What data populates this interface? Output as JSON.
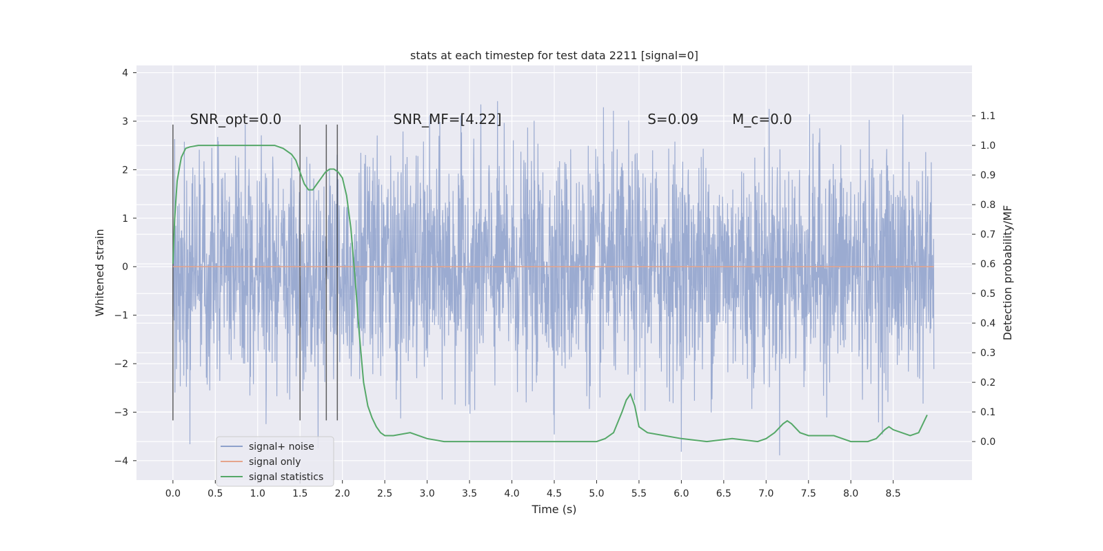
{
  "chart_data": {
    "type": "line",
    "title": "stats at each timestep for test data 2211 [signal=0]",
    "xlabel": "Time (s)",
    "ylabel": "Whitened strain",
    "y2label": "Detection probability/MF",
    "xlim": [
      -0.43,
      9.43
    ],
    "ylim": [
      -4.4,
      4.15
    ],
    "y2lim": [
      -0.13,
      1.27
    ],
    "xticks": [
      "0.0",
      "0.5",
      "1.0",
      "1.5",
      "2.0",
      "2.5",
      "3.0",
      "3.5",
      "4.0",
      "4.5",
      "5.0",
      "5.5",
      "6.0",
      "6.5",
      "7.0",
      "7.5",
      "8.0",
      "8.5"
    ],
    "yticks": [
      "4",
      "3",
      "2",
      "1",
      "0",
      "−1",
      "−2",
      "−3",
      "−4"
    ],
    "y2ticks": [
      "1.1",
      "1.0",
      "0.9",
      "0.8",
      "0.7",
      "0.6",
      "0.5",
      "0.4",
      "0.3",
      "0.2",
      "0.1",
      "0.0"
    ],
    "grid": true,
    "legend_position": "lower-left",
    "annotations": [
      {
        "text": "SNR_opt=0.0",
        "x": 0.2
      },
      {
        "text": "SNR_MF=[4.22]",
        "x": 2.6
      },
      {
        "text": "S=0.09",
        "x": 5.6
      },
      {
        "text": "M_c=0.0",
        "x": 6.6
      }
    ],
    "vlines": [
      0.0,
      1.5,
      1.81,
      1.94
    ],
    "series": [
      {
        "name": "signal+ noise",
        "color": "#8da0cb",
        "axis": "left",
        "description_values": {
          "t_start": 0.0,
          "t_end": 8.98,
          "envelope_p95": 2.5,
          "max": 3.8,
          "min": -4.0
        }
      },
      {
        "name": "signal only",
        "color": "#e5a48b",
        "axis": "left",
        "x": [
          0.0,
          8.98
        ],
        "values": [
          0.0,
          0.0
        ]
      },
      {
        "name": "signal statistics",
        "color": "#55a868",
        "axis": "right",
        "x": [
          0.0,
          0.02,
          0.05,
          0.08,
          0.1,
          0.15,
          0.2,
          0.3,
          0.5,
          0.8,
          1.0,
          1.2,
          1.3,
          1.4,
          1.45,
          1.5,
          1.55,
          1.6,
          1.65,
          1.7,
          1.75,
          1.8,
          1.85,
          1.9,
          1.95,
          2.0,
          2.05,
          2.1,
          2.15,
          2.2,
          2.25,
          2.3,
          2.35,
          2.4,
          2.45,
          2.5,
          2.6,
          2.8,
          3.0,
          3.2,
          3.5,
          4.0,
          4.5,
          4.8,
          5.0,
          5.1,
          5.2,
          5.3,
          5.35,
          5.4,
          5.45,
          5.5,
          5.6,
          5.8,
          6.0,
          6.3,
          6.6,
          6.9,
          7.0,
          7.1,
          7.2,
          7.25,
          7.3,
          7.4,
          7.5,
          7.6,
          7.8,
          8.0,
          8.2,
          8.3,
          8.4,
          8.45,
          8.5,
          8.6,
          8.7,
          8.8,
          8.9
        ],
        "values": [
          0.6,
          0.75,
          0.88,
          0.93,
          0.96,
          0.99,
          0.995,
          1.0,
          1.0,
          1.0,
          1.0,
          1.0,
          0.99,
          0.97,
          0.95,
          0.91,
          0.87,
          0.85,
          0.85,
          0.87,
          0.89,
          0.91,
          0.92,
          0.92,
          0.91,
          0.89,
          0.83,
          0.72,
          0.55,
          0.36,
          0.2,
          0.12,
          0.08,
          0.05,
          0.03,
          0.02,
          0.02,
          0.03,
          0.01,
          0.0,
          0.0,
          0.0,
          0.0,
          0.0,
          0.0,
          0.01,
          0.03,
          0.1,
          0.14,
          0.16,
          0.12,
          0.05,
          0.03,
          0.02,
          0.01,
          0.0,
          0.01,
          0.0,
          0.01,
          0.03,
          0.06,
          0.07,
          0.06,
          0.03,
          0.02,
          0.02,
          0.02,
          0.0,
          0.0,
          0.01,
          0.04,
          0.05,
          0.04,
          0.03,
          0.02,
          0.03,
          0.09
        ]
      }
    ]
  }
}
